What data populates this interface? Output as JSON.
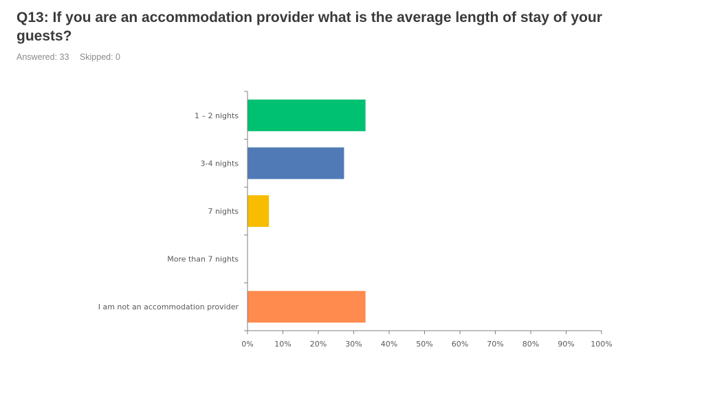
{
  "header": {
    "title": "Q13: If you are an accommodation provider what is the average length of stay of your guests?",
    "answered": "Answered: 33",
    "skipped": "Skipped: 0"
  },
  "chart_data": {
    "type": "bar",
    "orientation": "horizontal",
    "categories": [
      "1 – 2 nights",
      "3-4 nights",
      "7 nights",
      "More than 7 nights",
      "I am not an accommodation provider"
    ],
    "values": [
      33.33,
      27.27,
      6.06,
      0,
      33.33
    ],
    "colors": [
      "#00c071",
      "#4f7ab5",
      "#f7bd00",
      "#b5b5b5",
      "#ff8b4f"
    ],
    "xlim": [
      0,
      100
    ],
    "xticks": [
      "0%",
      "10%",
      "20%",
      "30%",
      "40%",
      "50%",
      "60%",
      "70%",
      "80%",
      "90%",
      "100%"
    ],
    "grid": false,
    "legend": "none"
  }
}
